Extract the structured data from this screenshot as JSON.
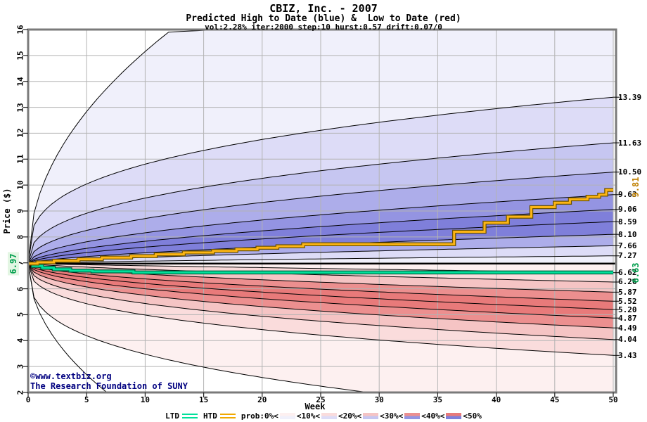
{
  "header": {
    "title": "CBIZ, Inc. - 2007",
    "subtitle": "Predicted High to Date (blue) &  Low to Date (red)",
    "params": "vol:2.28% iter:2000 step:10 hurst:0.57 drift:0.07/0"
  },
  "watermark": {
    "line1": "©www.textbiz.org",
    "line2": "The Research Foundation of SUNY",
    "color": "#000080"
  },
  "axes": {
    "x": {
      "label": "Week",
      "min": 0,
      "max": 50,
      "ticks": [
        0,
        5,
        10,
        15,
        20,
        25,
        30,
        35,
        40,
        45,
        50
      ]
    },
    "y": {
      "label": "Price ($)",
      "min": 2,
      "max": 16,
      "ticks": [
        2,
        3,
        4,
        5,
        6,
        7,
        8,
        9,
        10,
        11,
        12,
        13,
        14,
        15,
        16
      ]
    }
  },
  "annotations": {
    "start_price": {
      "text": "6.97",
      "value": 6.97,
      "color": "#009e4d",
      "bg": "#e3f6e3"
    },
    "htd_final": {
      "text": "9.81",
      "value": 9.81,
      "color": "#c08000"
    },
    "ltd_final": {
      "text": "6.63",
      "value": 6.63,
      "color": "#009e4d"
    }
  },
  "legend": {
    "ltd_label": "LTD",
    "htd_label": "HTD",
    "prob_labels": [
      "prob:0%<",
      "<10%<",
      "<20%<",
      "<30%<",
      "<40%<",
      "<50%"
    ],
    "swatch_shade_indices": [
      0,
      1,
      2,
      4,
      5
    ]
  },
  "colors": {
    "blue_shades": [
      "#f0f0fb",
      "#dddcf7",
      "#c6c6f1",
      "#adadea",
      "#9494e2",
      "#7f7fda"
    ],
    "red_shades": [
      "#fdf0f0",
      "#fadcdc",
      "#f5c4c4",
      "#f1a9a9",
      "#ec8f8f",
      "#e87a7a"
    ],
    "htd_line": "#fdb515",
    "htd_edge": "#6b5200",
    "ltd_line": "#00e09a",
    "ltd_edge": "#00613f",
    "boundary": "#000000",
    "baseline": "#000000",
    "grid": "#b3b3b3",
    "frame": "#7a7a7a",
    "tick": "#222222",
    "navy": "#000080"
  },
  "chart_data": {
    "type": "area",
    "subtype": "monte-carlo-probability-fan",
    "title": "CBIZ, Inc. - 2007",
    "xlabel": "Week",
    "ylabel": "Price ($)",
    "xlim": [
      0,
      50
    ],
    "ylim": [
      2,
      16
    ],
    "grid": true,
    "legend_position": "bottom",
    "start_price": 6.97,
    "baseline_value": 6.97,
    "high_fan": {
      "description": "percentile boundaries of predicted high-to-date at week 50, outer to inner",
      "ends_week50": [
        13.39,
        11.63,
        10.5,
        9.63,
        9.06,
        8.59,
        8.1,
        7.66,
        7.27
      ],
      "exponents": [
        0.32,
        0.38,
        0.44,
        0.5,
        0.55,
        0.58,
        0.62,
        0.66,
        0.72
      ],
      "band_shades": [
        0,
        1,
        2,
        3,
        4,
        5,
        5,
        3,
        1,
        0
      ],
      "max_envelope": {
        "end": 15.9,
        "reach_week": 12,
        "exp": 0.48,
        "drift": 0.023
      }
    },
    "low_fan": {
      "description": "percentile boundaries of predicted low-to-date at week 50, inner to outer",
      "ends_week50": [
        6.62,
        6.26,
        5.87,
        5.52,
        5.2,
        4.87,
        4.49,
        4.04,
        3.43
      ],
      "exponents": [
        0.9,
        0.72,
        0.62,
        0.56,
        0.52,
        0.48,
        0.44,
        0.4,
        0.36
      ],
      "band_shades": [
        0,
        1,
        2,
        4,
        5,
        5,
        4,
        2,
        1,
        0
      ],
      "p10_envelope": {
        "end": 1.95,
        "reach_week": 30,
        "exp": 0.33,
        "drift": -0.01
      },
      "min_envelope": {
        "end": 1.9,
        "reach_week": 7,
        "exp": 0.5,
        "drift": -0.004
      }
    },
    "htd_final": 9.81,
    "ltd_final": 6.63,
    "htd_steps": [
      [
        0,
        6.97
      ],
      [
        0.8,
        7.02
      ],
      [
        2.2,
        7.08
      ],
      [
        4.3,
        7.14
      ],
      [
        6.3,
        7.2
      ],
      [
        8.8,
        7.26
      ],
      [
        10.9,
        7.33
      ],
      [
        13.3,
        7.4
      ],
      [
        15.8,
        7.46
      ],
      [
        17.8,
        7.52
      ],
      [
        19.6,
        7.58
      ],
      [
        21.3,
        7.64
      ],
      [
        23.5,
        7.72
      ],
      [
        36.4,
        8.2
      ],
      [
        39.0,
        8.55
      ],
      [
        41.0,
        8.78
      ],
      [
        43.0,
        9.15
      ],
      [
        45.0,
        9.32
      ],
      [
        46.3,
        9.45
      ],
      [
        47.8,
        9.55
      ],
      [
        48.8,
        9.63
      ],
      [
        49.4,
        9.81
      ],
      [
        50,
        9.81
      ]
    ],
    "ltd_steps": [
      [
        0,
        6.97
      ],
      [
        0.4,
        6.88
      ],
      [
        1.2,
        6.81
      ],
      [
        2.2,
        6.75
      ],
      [
        3.6,
        6.7
      ],
      [
        5.5,
        6.67
      ],
      [
        9.0,
        6.63
      ],
      [
        50,
        6.63
      ]
    ]
  }
}
